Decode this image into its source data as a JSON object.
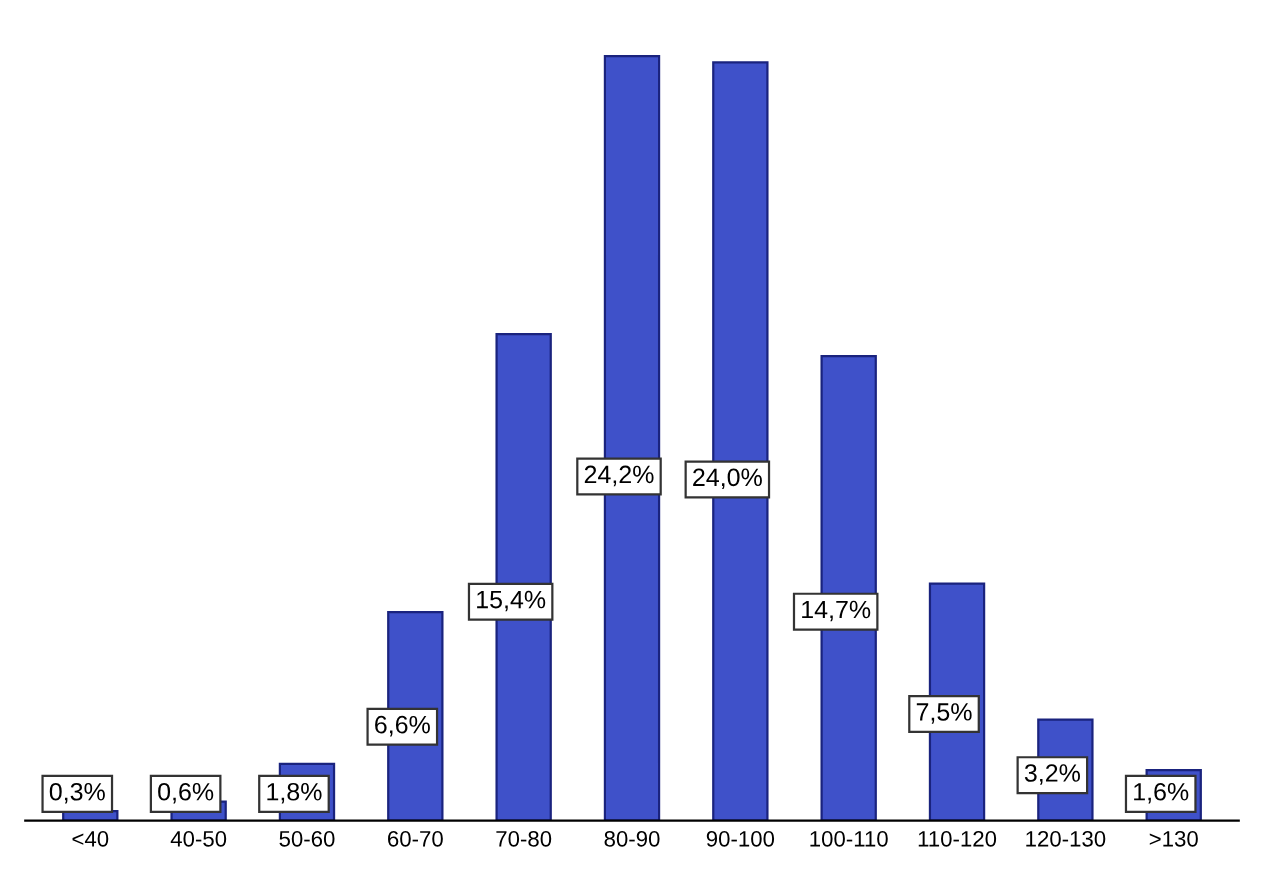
{
  "chart_data": {
    "type": "bar",
    "categories": [
      "<40",
      "40-50",
      "50-60",
      "60-70",
      "70-80",
      "80-90",
      "90-100",
      "100-110",
      "110-120",
      "120-130",
      ">130"
    ],
    "values": [
      0.3,
      0.6,
      1.8,
      6.6,
      15.4,
      24.2,
      24.0,
      14.7,
      7.5,
      3.2,
      1.6
    ],
    "value_labels": [
      "0,3%",
      "0,6%",
      "1,8%",
      "6,6%",
      "15,4%",
      "24,2%",
      "24,0%",
      "14,7%",
      "7,5%",
      "3,2%",
      "1,6%"
    ],
    "color": "#3f51c9",
    "grid": false
  }
}
